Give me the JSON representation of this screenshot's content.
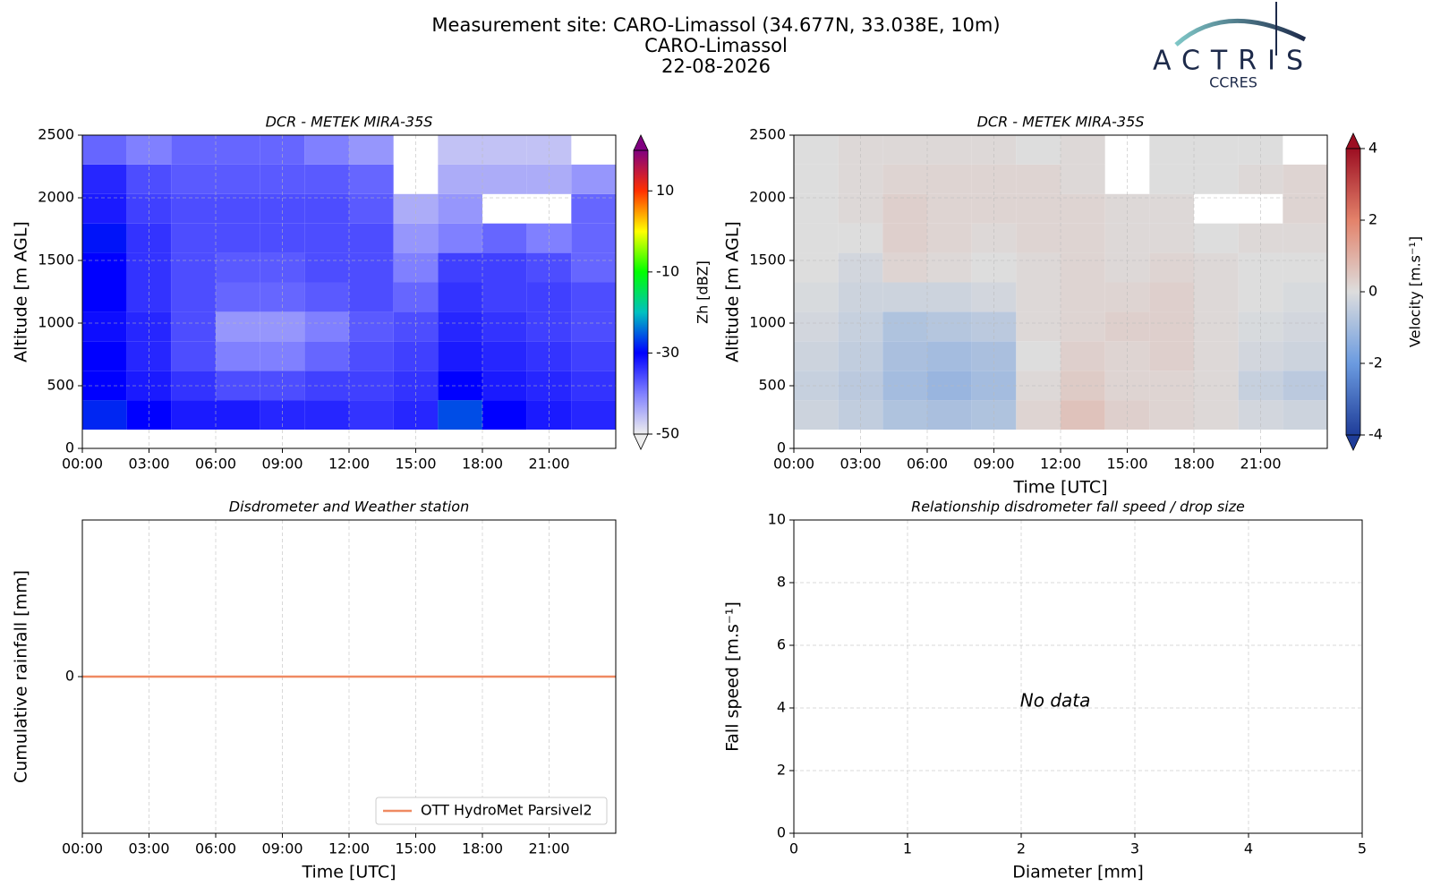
{
  "header": {
    "title": [
      "Measurement site: CARO-Limassol (34.677N, 33.038E, 10m)",
      "CARO-Limassol",
      "22-08-2026"
    ],
    "logo": {
      "name": "ACTRIS",
      "subtitle": "CCRES"
    }
  },
  "chart_data": [
    {
      "type": "heatmap",
      "title": "DCR - METEK MIRA-35S",
      "ylabel": "Altitude [m AGL]",
      "xlim": [
        0,
        24
      ],
      "xticks": [
        {
          "value": 0,
          "label": "00:00"
        },
        {
          "value": 3,
          "label": "03:00"
        },
        {
          "value": 6,
          "label": "06:00"
        },
        {
          "value": 9,
          "label": "09:00"
        },
        {
          "value": 12,
          "label": "12:00"
        },
        {
          "value": 15,
          "label": "15:00"
        },
        {
          "value": 18,
          "label": "18:00"
        },
        {
          "value": 21,
          "label": "21:00"
        }
      ],
      "ylim": [
        0,
        2500
      ],
      "yticks": [
        0,
        500,
        1000,
        1500,
        2000,
        2500
      ],
      "grid": "both",
      "xbins": [
        0,
        2,
        4,
        6,
        8,
        10,
        12,
        14,
        16,
        18,
        20,
        22,
        24
      ],
      "ybins": [
        150,
        385,
        620,
        855,
        1090,
        1325,
        1560,
        1795,
        2030,
        2265,
        2500
      ],
      "z": [
        [
          -28,
          -30,
          -32,
          -32,
          -33,
          -33,
          -34,
          -33,
          -26,
          -30,
          -32,
          -33
        ],
        [
          -30,
          -32,
          -34,
          -36,
          -36,
          -35,
          -35,
          -34,
          -30,
          -32,
          -33,
          -34
        ],
        [
          -30,
          -33,
          -36,
          -40,
          -40,
          -38,
          -36,
          -35,
          -32,
          -33,
          -34,
          -35
        ],
        [
          -31,
          -33,
          -36,
          -42,
          -42,
          -40,
          -37,
          -36,
          -33,
          -34,
          -35,
          -36
        ],
        [
          -30,
          -34,
          -36,
          -38,
          -38,
          -37,
          -36,
          -38,
          -34,
          -35,
          -35,
          -36
        ],
        [
          -30,
          -34,
          -36,
          -37,
          -37,
          -36,
          -36,
          -40,
          -35,
          -35,
          -36,
          -38
        ],
        [
          -29,
          -34,
          -36,
          -36,
          -36,
          -36,
          -36,
          -42,
          -40,
          -38,
          -40,
          -38
        ],
        [
          -32,
          -35,
          -36,
          -36,
          -36,
          -36,
          -37,
          -44,
          -42,
          null,
          null,
          -38
        ],
        [
          -33,
          -36,
          -37,
          -37,
          -37,
          -37,
          -38,
          null,
          -44,
          -44,
          -44,
          -42
        ],
        [
          -38,
          -40,
          -38,
          -38,
          -38,
          -40,
          -42,
          null,
          -46,
          -46,
          -46,
          null
        ]
      ],
      "colorbar": {
        "label": "Zh [dBZ]",
        "lim": [
          -50,
          20
        ],
        "ticks": [
          -50,
          -30,
          -10,
          10
        ],
        "colors": [
          "#eeeeee",
          "#8080ff",
          "#0000ff",
          "#00c0c0",
          "#00ff00",
          "#ffff00",
          "#ff3000",
          "#800080"
        ]
      }
    },
    {
      "type": "heatmap",
      "title": "DCR - METEK MIRA-35S",
      "xlabel": "Time [UTC]",
      "ylabel": "Altitude [m AGL]",
      "xlim": [
        0,
        24
      ],
      "xticks": [
        {
          "value": 0,
          "label": "00:00"
        },
        {
          "value": 3,
          "label": "03:00"
        },
        {
          "value": 6,
          "label": "06:00"
        },
        {
          "value": 9,
          "label": "09:00"
        },
        {
          "value": 12,
          "label": "12:00"
        },
        {
          "value": 15,
          "label": "15:00"
        },
        {
          "value": 18,
          "label": "18:00"
        },
        {
          "value": 21,
          "label": "21:00"
        }
      ],
      "ylim": [
        0,
        2500
      ],
      "yticks": [
        0,
        500,
        1000,
        1500,
        2000,
        2500
      ],
      "grid": "both",
      "xbins": [
        0,
        2,
        4,
        6,
        8,
        10,
        12,
        14,
        16,
        18,
        20,
        22,
        24
      ],
      "ybins": [
        150,
        385,
        620,
        855,
        1090,
        1325,
        1560,
        1795,
        2030,
        2265,
        2500
      ],
      "z": [
        [
          -0.3,
          -0.5,
          -0.8,
          -0.9,
          -0.8,
          0.2,
          0.6,
          0.3,
          0.2,
          0.1,
          -0.2,
          -0.3
        ],
        [
          -0.4,
          -0.6,
          -1.0,
          -1.2,
          -1.0,
          0.1,
          0.4,
          0.2,
          0.2,
          0.1,
          -0.4,
          -0.6
        ],
        [
          -0.3,
          -0.5,
          -0.9,
          -1.0,
          -0.9,
          0.0,
          0.3,
          0.2,
          0.3,
          0.1,
          -0.2,
          -0.3
        ],
        [
          -0.2,
          -0.4,
          -0.8,
          -0.7,
          -0.6,
          0.1,
          0.2,
          0.3,
          0.3,
          0.1,
          -0.1,
          -0.2
        ],
        [
          -0.1,
          -0.3,
          -0.3,
          -0.3,
          -0.2,
          0.1,
          0.2,
          0.2,
          0.3,
          0.1,
          0.0,
          -0.1
        ],
        [
          0.0,
          -0.2,
          0.2,
          0.1,
          0.0,
          0.1,
          0.2,
          0.1,
          0.2,
          0.1,
          0.0,
          0.0
        ],
        [
          0.0,
          0.0,
          0.3,
          0.2,
          0.1,
          0.2,
          0.2,
          0.1,
          0.1,
          0.0,
          0.1,
          0.1
        ],
        [
          0.0,
          0.1,
          0.3,
          0.2,
          0.2,
          0.2,
          0.2,
          0.1,
          0.1,
          null,
          null,
          0.2
        ],
        [
          0.0,
          0.1,
          0.2,
          0.2,
          0.2,
          0.2,
          0.1,
          null,
          0.0,
          0.0,
          0.1,
          0.2
        ],
        [
          0.0,
          0.1,
          0.1,
          0.1,
          0.1,
          0.0,
          0.1,
          null,
          0.0,
          0.0,
          0.0,
          null
        ]
      ],
      "colorbar": {
        "label": "Velocity [m.s⁻¹]",
        "lim": [
          -4,
          4
        ],
        "ticks": [
          -4,
          -2,
          0,
          2,
          4
        ],
        "colors": [
          "#1f3d99",
          "#6b9be0",
          "#dddddd",
          "#e3826a",
          "#9c0e22"
        ]
      }
    },
    {
      "type": "line",
      "title": "Disdrometer and Weather station",
      "xlabel": "Time [UTC]",
      "ylabel": "Cumulative rainfall [mm]",
      "xlim": [
        0,
        24
      ],
      "xticks": [
        {
          "value": 0,
          "label": "00:00"
        },
        {
          "value": 3,
          "label": "03:00"
        },
        {
          "value": 6,
          "label": "06:00"
        },
        {
          "value": 9,
          "label": "09:00"
        },
        {
          "value": 12,
          "label": "12:00"
        },
        {
          "value": 15,
          "label": "15:00"
        },
        {
          "value": 18,
          "label": "18:00"
        },
        {
          "value": 21,
          "label": "21:00"
        }
      ],
      "ylim": [
        -0.055,
        0.055
      ],
      "yticks": [
        0
      ],
      "grid": "x",
      "legend": "lower right",
      "x": [
        0,
        24
      ],
      "series": [
        {
          "name": "OTT HydroMet Parsivel2",
          "color": "#ef8a62",
          "values": [
            0,
            0
          ]
        }
      ]
    },
    {
      "type": "scatter",
      "title": "Relationship disdrometer fall speed / drop size",
      "xlabel": "Diameter [mm]",
      "ylabel": "Fall speed [m.s⁻¹]",
      "xlim": [
        0,
        5
      ],
      "xticks": [
        0,
        1,
        2,
        3,
        4,
        5
      ],
      "ylim": [
        0,
        10
      ],
      "yticks": [
        0,
        2,
        4,
        6,
        8,
        10
      ],
      "grid": "both",
      "annotation": "No data"
    }
  ]
}
